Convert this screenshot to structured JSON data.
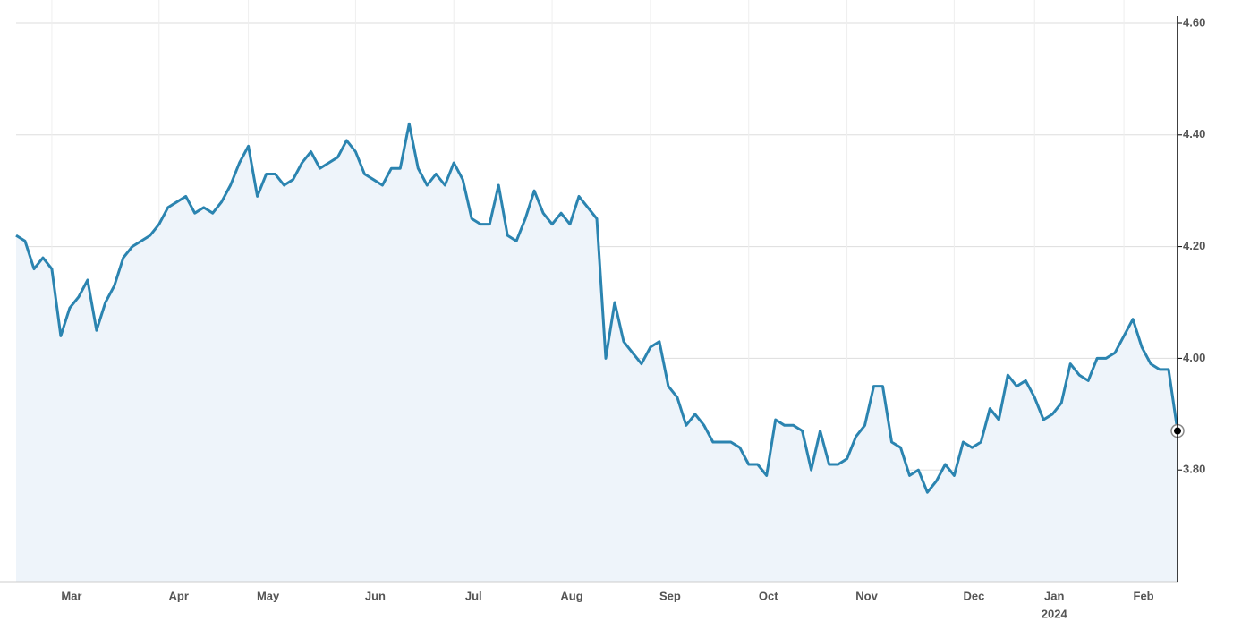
{
  "chart_data": {
    "type": "line",
    "categories": [
      null,
      null,
      null,
      null,
      "Mar",
      null,
      null,
      null,
      null,
      null,
      null,
      null,
      null,
      null,
      null,
      null,
      "Apr",
      null,
      null,
      null,
      null,
      null,
      null,
      null,
      null,
      null,
      "May",
      null,
      null,
      null,
      null,
      null,
      null,
      null,
      null,
      null,
      null,
      null,
      "Jun",
      null,
      null,
      null,
      null,
      null,
      null,
      null,
      null,
      null,
      null,
      "Jul",
      null,
      null,
      null,
      null,
      null,
      null,
      null,
      null,
      null,
      null,
      "Aug",
      null,
      null,
      null,
      null,
      null,
      null,
      null,
      null,
      null,
      null,
      "Sep",
      null,
      null,
      null,
      null,
      null,
      null,
      null,
      null,
      null,
      null,
      "Oct",
      null,
      null,
      null,
      null,
      null,
      null,
      null,
      null,
      null,
      null,
      "Nov",
      null,
      null,
      null,
      null,
      null,
      null,
      null,
      null,
      null,
      null,
      null,
      "Dec",
      null,
      null,
      null,
      null,
      null,
      null,
      null,
      null,
      "Jan",
      null,
      null,
      null,
      null,
      null,
      null,
      null,
      null,
      null,
      "Feb",
      null,
      null,
      null,
      null,
      null,
      null
    ],
    "values": [
      4.22,
      4.21,
      4.16,
      4.18,
      4.16,
      4.04,
      4.09,
      4.11,
      4.14,
      4.05,
      4.1,
      4.13,
      4.18,
      4.2,
      4.21,
      4.22,
      4.24,
      4.27,
      4.28,
      4.29,
      4.26,
      4.27,
      4.26,
      4.28,
      4.31,
      4.35,
      4.38,
      4.29,
      4.33,
      4.33,
      4.31,
      4.32,
      4.35,
      4.37,
      4.34,
      4.35,
      4.36,
      4.39,
      4.37,
      4.33,
      4.32,
      4.31,
      4.34,
      4.34,
      4.42,
      4.34,
      4.31,
      4.33,
      4.31,
      4.35,
      4.32,
      4.25,
      4.24,
      4.24,
      4.31,
      4.22,
      4.21,
      4.25,
      4.3,
      4.26,
      4.24,
      4.26,
      4.24,
      4.29,
      4.27,
      4.25,
      4.0,
      4.1,
      4.03,
      4.01,
      3.99,
      4.02,
      4.03,
      3.95,
      3.93,
      3.88,
      3.9,
      3.88,
      3.85,
      3.85,
      3.85,
      3.84,
      3.81,
      3.81,
      3.79,
      3.89,
      3.88,
      3.88,
      3.87,
      3.8,
      3.87,
      3.81,
      3.81,
      3.82,
      3.86,
      3.88,
      3.95,
      3.95,
      3.85,
      3.84,
      3.79,
      3.8,
      3.76,
      3.78,
      3.81,
      3.79,
      3.85,
      3.84,
      3.85,
      3.91,
      3.89,
      3.97,
      3.95,
      3.96,
      3.93,
      3.89,
      3.9,
      3.92,
      3.99,
      3.97,
      3.96,
      4.0,
      4.0,
      4.01,
      4.04,
      4.07,
      4.02,
      3.99,
      3.98,
      3.98,
      3.87
    ],
    "color": "#2b84b0",
    "fill": "#eef4fa",
    "ylim": [
      3.6,
      4.6
    ],
    "yticks": [
      {
        "value": 3.8,
        "label": "3.80"
      },
      {
        "value": 4.0,
        "label": "4.00"
      },
      {
        "value": 4.2,
        "label": "4.20"
      },
      {
        "value": 4.4,
        "label": "4.40"
      },
      {
        "value": 4.6,
        "label": "4.60"
      }
    ],
    "grid": true,
    "end_marker": true,
    "annotations": [
      {
        "text": "2024",
        "category": "Jan"
      }
    ]
  }
}
